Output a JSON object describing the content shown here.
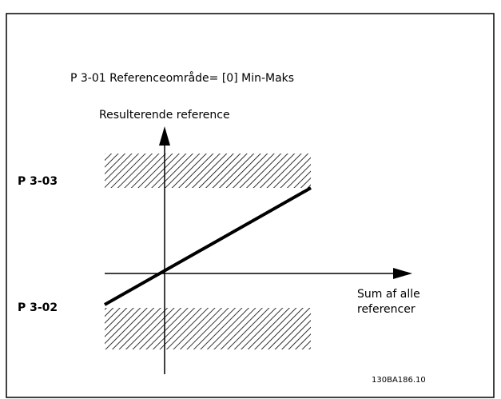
{
  "title": "P 3-01 Referenceområde= [0] Min-Maks",
  "y_axis_label": "Resulterende reference",
  "x_axis_label": [
    "Sum af alle",
    "referencer"
  ],
  "upper_label": "P 3-03",
  "lower_label": "P 3-02",
  "figure_id": "130BA186.10"
}
